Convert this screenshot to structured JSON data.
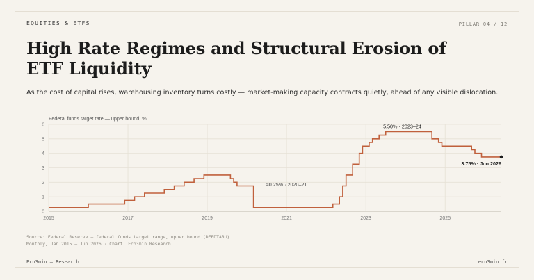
{
  "header": {
    "kicker": "EQUITIES & ETFS",
    "pillar": "PILLAR 04 / 12",
    "title": "High Rate Regimes and Structural Erosion of ETF Liquidity",
    "subtitle": "As the cost of capital rises, warehousing inventory turns costly — market-making capacity contracts quietly, ahead of any visible dislocation."
  },
  "footer": {
    "source_line1": "Source: Federal Reserve — federal funds target range, upper bound (DFEDTARU).",
    "source_line2": "Monthly, Jan 2015 — Jun 2026 · Chart: Eco3min Research",
    "brand": "Eco3min — Research",
    "site": "eco3min.fr"
  },
  "colors": {
    "line": "#c0603c",
    "grid": "#e6e1d6",
    "axis": "#bdb8ad",
    "tick_text": "#777",
    "background": "#f6f3ed"
  },
  "chart_data": {
    "type": "line",
    "title": "",
    "ylabel": "Federal funds target rate — upper bound, %",
    "xlabel": "",
    "ylim": [
      0,
      6
    ],
    "yticks": [
      0,
      1,
      2,
      3,
      4,
      5,
      6
    ],
    "xlim": [
      "2015-01",
      "2026-06"
    ],
    "xticks": [
      "2015",
      "2017",
      "2019",
      "2021",
      "2023",
      "2025"
    ],
    "grid": true,
    "step": true,
    "series": [
      {
        "points": [
          [
            "2015-01",
            0.25
          ],
          [
            "2015-12",
            0.25
          ],
          [
            "2016-01",
            0.5
          ],
          [
            "2016-12",
            0.75
          ],
          [
            "2017-03",
            1.0
          ],
          [
            "2017-06",
            1.25
          ],
          [
            "2017-12",
            1.5
          ],
          [
            "2018-03",
            1.75
          ],
          [
            "2018-06",
            2.0
          ],
          [
            "2018-09",
            2.25
          ],
          [
            "2018-12",
            2.5
          ],
          [
            "2019-08",
            2.25
          ],
          [
            "2019-09",
            2.0
          ],
          [
            "2019-10",
            1.75
          ],
          [
            "2020-03",
            0.25
          ],
          [
            "2022-03",
            0.5
          ],
          [
            "2022-05",
            1.0
          ],
          [
            "2022-06",
            1.75
          ],
          [
            "2022-07",
            2.5
          ],
          [
            "2022-09",
            3.25
          ],
          [
            "2022-11",
            4.0
          ],
          [
            "2022-12",
            4.5
          ],
          [
            "2023-02",
            4.75
          ],
          [
            "2023-03",
            5.0
          ],
          [
            "2023-05",
            5.25
          ],
          [
            "2023-07",
            5.5
          ],
          [
            "2024-09",
            5.0
          ],
          [
            "2024-11",
            4.75
          ],
          [
            "2024-12",
            4.5
          ],
          [
            "2025-09",
            4.25
          ],
          [
            "2025-10",
            4.0
          ],
          [
            "2025-12",
            3.75
          ],
          [
            "2026-06",
            3.75
          ]
        ]
      }
    ],
    "annotations": [
      {
        "text": "5.50% · 2023–24",
        "x": "2023-12",
        "y": 5.5
      },
      {
        "text": "≈0.25% · 2020–21",
        "x": "2021-01",
        "y": 0.25
      },
      {
        "text": "3.75% · Jun 2026",
        "x": "2026-06",
        "y": 3.75
      }
    ]
  }
}
